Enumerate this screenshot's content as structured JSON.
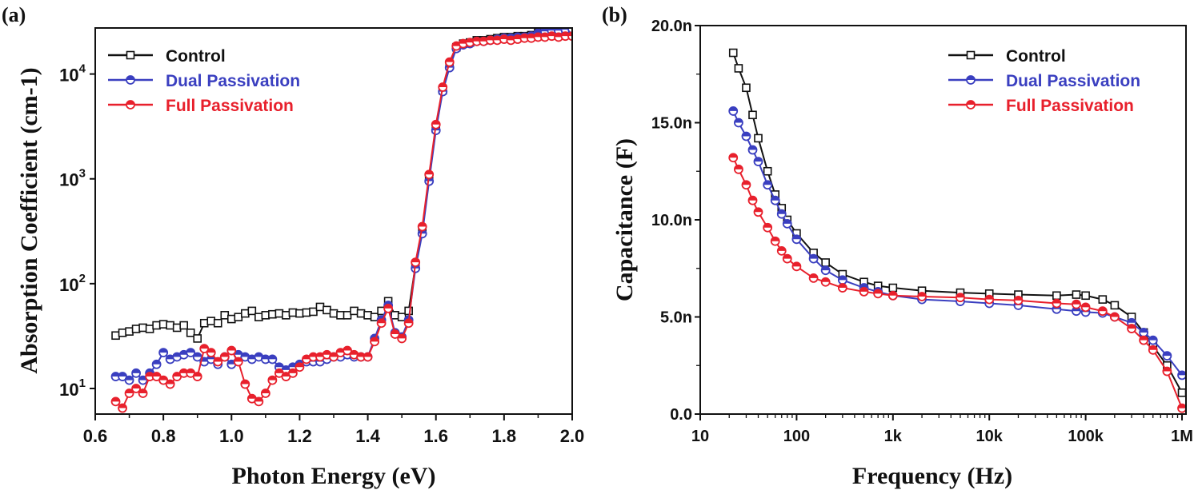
{
  "chart_data": [
    {
      "type": "line",
      "panel_label": "(a)",
      "xlabel": "Photon Energy (eV)",
      "ylabel": "Absorption Coefficient (cm-1)",
      "ylabel_main": "Absorption Coefficient (cm",
      "ylabel_sup": "-1",
      "ylabel_end": ")",
      "yscale": "log",
      "xlim": [
        0.6,
        2.0
      ],
      "ylim": [
        5.7,
        27500
      ],
      "xticks": [
        "0.6",
        "0.8",
        "1.0",
        "1.2",
        "1.4",
        "1.6",
        "1.8",
        "2.0"
      ],
      "yticks": [
        {
          "base": "10",
          "exp": "1",
          "value": 10
        },
        {
          "base": "10",
          "exp": "2",
          "value": 100
        },
        {
          "base": "10",
          "exp": "3",
          "value": 1000
        },
        {
          "base": "10",
          "exp": "4",
          "value": 10000
        }
      ],
      "legend_position": "top-left",
      "grid": false,
      "x": [
        0.66,
        0.68,
        0.7,
        0.72,
        0.74,
        0.76,
        0.78,
        0.8,
        0.82,
        0.84,
        0.86,
        0.88,
        0.9,
        0.92,
        0.94,
        0.96,
        0.98,
        1.0,
        1.02,
        1.04,
        1.06,
        1.08,
        1.1,
        1.12,
        1.14,
        1.16,
        1.18,
        1.2,
        1.22,
        1.24,
        1.26,
        1.28,
        1.3,
        1.32,
        1.34,
        1.36,
        1.38,
        1.4,
        1.42,
        1.44,
        1.46,
        1.48,
        1.5,
        1.52,
        1.54,
        1.56,
        1.58,
        1.6,
        1.62,
        1.64,
        1.66,
        1.68,
        1.7,
        1.72,
        1.74,
        1.76,
        1.78,
        1.8,
        1.82,
        1.84,
        1.86,
        1.88,
        1.9,
        1.92,
        1.94,
        1.96,
        1.98,
        2.0
      ],
      "series": [
        {
          "name": "Control",
          "color": "#111111",
          "marker": "square",
          "values": [
            32,
            34,
            35,
            37,
            38,
            37,
            40,
            41,
            40,
            38,
            40,
            34,
            30,
            42,
            44,
            42,
            50,
            46,
            48,
            52,
            55,
            48,
            50,
            51,
            52,
            50,
            53,
            52,
            53,
            54,
            60,
            56,
            52,
            50,
            50,
            55,
            52,
            50,
            48,
            55,
            68,
            50,
            48,
            55,
            150,
            320,
            1000,
            3000,
            7000,
            12000,
            18000,
            19500,
            20000,
            21000,
            21000,
            21500,
            22000,
            22500,
            22500,
            23000,
            23000,
            23500,
            25000,
            26000,
            26500,
            26500,
            27000,
            28000
          ]
        },
        {
          "name": "Dual Passivation",
          "color": "#3a3fc0",
          "marker": "circle",
          "values": [
            13,
            13,
            12,
            14,
            12,
            14,
            17,
            22,
            19,
            20,
            21,
            22,
            20,
            18,
            19,
            17,
            20,
            17,
            21,
            20,
            19,
            20,
            19,
            19,
            16,
            15,
            16,
            17,
            18,
            18,
            18,
            19,
            20,
            20,
            21,
            20,
            20,
            20,
            30,
            45,
            62,
            34,
            31,
            45,
            140,
            300,
            950,
            2900,
            6800,
            11500,
            17500,
            19000,
            19500,
            20500,
            20500,
            21000,
            21500,
            22000,
            22000,
            22500,
            22500,
            23000,
            24500,
            25500,
            26000,
            26000,
            26500,
            27000
          ]
        },
        {
          "name": "Full Passivation",
          "color": "#e8202c",
          "marker": "circle",
          "values": [
            7.5,
            6.5,
            9,
            10,
            9,
            13,
            13,
            12,
            11,
            13,
            14,
            14,
            13,
            24,
            22,
            18,
            20,
            23,
            18,
            11,
            8,
            7.5,
            9,
            12,
            14,
            13,
            14,
            16,
            19,
            20,
            20,
            21,
            20,
            22,
            23,
            21,
            20,
            20,
            28,
            42,
            58,
            33,
            30,
            42,
            160,
            350,
            1100,
            3300,
            7500,
            13000,
            18500,
            19500,
            20000,
            20500,
            20500,
            21000,
            21000,
            21500,
            21000,
            21500,
            22000,
            22000,
            22500,
            22500,
            23000,
            22500,
            23000,
            23000
          ]
        }
      ]
    },
    {
      "type": "line",
      "panel_label": "(b)",
      "xlabel": "Frequency (Hz)",
      "ylabel": "Capacitance (F)",
      "xscale": "log",
      "xlim": [
        10,
        1100000
      ],
      "ylim": [
        0,
        20
      ],
      "y_unit": "nF",
      "xticks": [
        {
          "label": "10",
          "value": 10
        },
        {
          "label": "100",
          "value": 100
        },
        {
          "label": "1k",
          "value": 1000
        },
        {
          "label": "10k",
          "value": 10000
        },
        {
          "label": "100k",
          "value": 100000
        },
        {
          "label": "1M",
          "value": 1000000
        }
      ],
      "yticks": [
        {
          "label": "0.0",
          "value": 0
        },
        {
          "label": "5.0n",
          "value": 5
        },
        {
          "label": "10.0n",
          "value": 10
        },
        {
          "label": "15.0n",
          "value": 15
        },
        {
          "label": "20.0n",
          "value": 20
        }
      ],
      "legend_position": "top-right",
      "grid": false,
      "x": [
        22,
        25,
        30,
        35,
        40,
        50,
        60,
        70,
        80,
        100,
        150,
        200,
        300,
        500,
        700,
        1000,
        2000,
        5000,
        10000,
        20000,
        50000,
        80000,
        100000,
        150000,
        200000,
        300000,
        400000,
        500000,
        700000,
        1000000
      ],
      "series": [
        {
          "name": "Control",
          "color": "#111111",
          "marker": "square",
          "values": [
            18.6,
            17.8,
            16.8,
            15.4,
            14.2,
            12.5,
            11.3,
            10.6,
            10.0,
            9.3,
            8.3,
            7.8,
            7.2,
            6.8,
            6.6,
            6.5,
            6.35,
            6.25,
            6.2,
            6.15,
            6.1,
            6.15,
            6.1,
            5.9,
            5.6,
            5.0,
            4.2,
            3.5,
            2.5,
            1.1
          ]
        },
        {
          "name": "Dual Passivation",
          "color": "#3a3fc0",
          "marker": "circle",
          "values": [
            15.6,
            15.0,
            14.3,
            13.6,
            13.0,
            11.8,
            11.0,
            10.3,
            9.8,
            9.0,
            8.0,
            7.4,
            6.9,
            6.5,
            6.3,
            6.1,
            5.9,
            5.8,
            5.7,
            5.6,
            5.4,
            5.3,
            5.25,
            5.2,
            5.0,
            4.7,
            4.2,
            3.8,
            3.0,
            2.0
          ]
        },
        {
          "name": "Full Passivation",
          "color": "#e8202c",
          "marker": "circle",
          "values": [
            13.2,
            12.6,
            11.8,
            11.0,
            10.4,
            9.6,
            8.9,
            8.4,
            8.0,
            7.6,
            7.0,
            6.8,
            6.5,
            6.3,
            6.2,
            6.1,
            6.05,
            6.0,
            5.9,
            5.85,
            5.7,
            5.65,
            5.5,
            5.3,
            5.0,
            4.4,
            3.8,
            3.3,
            2.2,
            0.3
          ]
        }
      ]
    }
  ]
}
